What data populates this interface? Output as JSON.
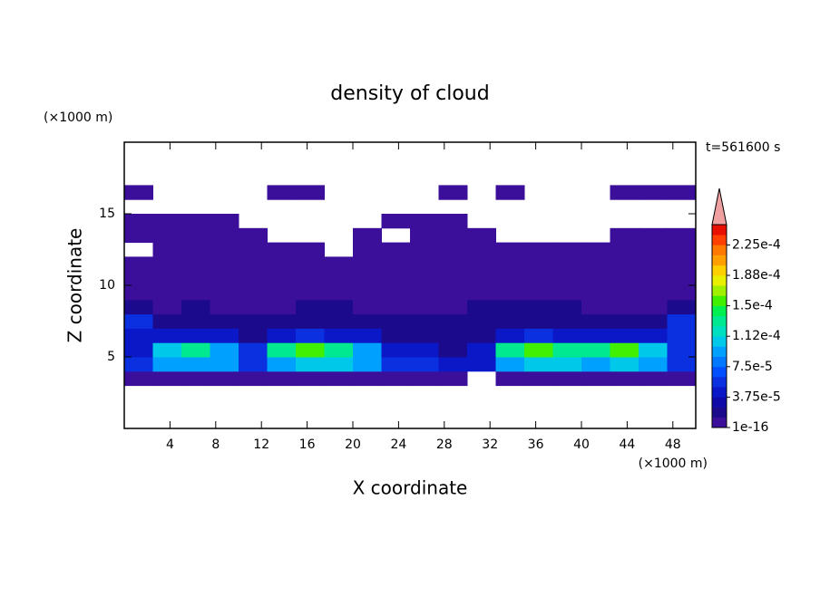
{
  "chart_data": {
    "type": "contour",
    "title": "density of cloud",
    "xlabel": "X coordinate",
    "ylabel": "Z coordinate",
    "x_unit": "(×1000 m)",
    "y_unit": "(×1000 m)",
    "annotation": "t=561600 s",
    "xlim": [
      0,
      50
    ],
    "ylim": [
      0,
      20
    ],
    "xticks": [
      4,
      8,
      12,
      16,
      20,
      24,
      28,
      32,
      36,
      40,
      44,
      48
    ],
    "yticks": [
      5,
      10,
      15
    ],
    "x_edges": [
      0,
      2.5,
      5,
      7.5,
      10,
      12.5,
      15,
      17.5,
      20,
      22.5,
      25,
      27.5,
      30,
      32.5,
      35,
      37.5,
      40,
      42.5,
      45,
      47.5,
      50
    ],
    "y_edges": [
      3,
      4,
      5,
      6,
      7,
      8,
      9,
      10,
      11,
      12,
      13,
      14,
      15,
      16,
      17
    ],
    "values": [
      [
        1e-06,
        1e-06,
        1e-06,
        1e-06,
        1e-06,
        1e-06,
        1e-06,
        1e-06,
        1e-06,
        1e-06,
        1e-06,
        1e-06,
        null,
        1e-06,
        1e-06,
        1e-06,
        1e-06,
        1e-06,
        1e-06,
        1e-06
      ],
      [
        6e-05,
        9e-05,
        9e-05,
        9e-05,
        6e-05,
        9e-05,
        0.00011,
        0.00011,
        9e-05,
        6e-05,
        6e-05,
        4e-05,
        4e-05,
        9e-05,
        0.00011,
        0.00011,
        9e-05,
        0.00011,
        9e-05,
        6e-05
      ],
      [
        4e-05,
        0.00011,
        0.00013,
        9e-05,
        6e-05,
        0.00013,
        0.00016,
        0.00013,
        9e-05,
        4e-05,
        4e-05,
        2e-05,
        4e-05,
        0.00013,
        0.00016,
        0.00013,
        0.00013,
        0.00016,
        0.00011,
        6e-05
      ],
      [
        4e-05,
        4e-05,
        4e-05,
        4e-05,
        2e-05,
        4e-05,
        6e-05,
        4e-05,
        4e-05,
        2e-05,
        2e-05,
        2e-05,
        2e-05,
        4e-05,
        6e-05,
        4e-05,
        4e-05,
        4e-05,
        4e-05,
        6e-05
      ],
      [
        6e-05,
        2e-05,
        2e-05,
        2e-05,
        2e-05,
        2e-05,
        2e-05,
        2e-05,
        2e-05,
        2e-05,
        2e-05,
        2e-05,
        2e-05,
        2e-05,
        2e-05,
        2e-05,
        2e-05,
        2e-05,
        2e-05,
        6e-05
      ],
      [
        2e-05,
        1e-06,
        2e-05,
        1e-06,
        1e-06,
        1e-06,
        2e-05,
        2e-05,
        1e-06,
        1e-06,
        1e-06,
        1e-06,
        2e-05,
        2e-05,
        2e-05,
        2e-05,
        1e-06,
        1e-06,
        1e-06,
        2e-05
      ],
      [
        1e-06,
        1e-06,
        1e-06,
        1e-06,
        1e-06,
        1e-06,
        1e-06,
        1e-06,
        1e-06,
        1e-06,
        1e-06,
        1e-06,
        1e-06,
        1e-06,
        1e-06,
        1e-06,
        1e-06,
        1e-06,
        1e-06,
        1e-06
      ],
      [
        1e-06,
        1e-06,
        1e-06,
        1e-06,
        1e-06,
        1e-06,
        1e-06,
        1e-06,
        1e-06,
        1e-06,
        1e-06,
        1e-06,
        1e-06,
        1e-06,
        1e-06,
        1e-06,
        1e-06,
        1e-06,
        1e-06,
        1e-06
      ],
      [
        1e-06,
        1e-06,
        1e-06,
        1e-06,
        1e-06,
        1e-06,
        1e-06,
        1e-06,
        1e-06,
        1e-06,
        1e-06,
        1e-06,
        1e-06,
        1e-06,
        1e-06,
        1e-06,
        1e-06,
        1e-06,
        1e-06,
        1e-06
      ],
      [
        null,
        1e-06,
        1e-06,
        1e-06,
        1e-06,
        1e-06,
        1e-06,
        null,
        1e-06,
        1e-06,
        1e-06,
        1e-06,
        1e-06,
        1e-06,
        1e-06,
        1e-06,
        1e-06,
        1e-06,
        1e-06,
        1e-06
      ],
      [
        1e-06,
        1e-06,
        1e-06,
        1e-06,
        1e-06,
        null,
        null,
        null,
        1e-06,
        null,
        1e-06,
        1e-06,
        1e-06,
        null,
        null,
        null,
        null,
        1e-06,
        1e-06,
        1e-06
      ],
      [
        1e-06,
        1e-06,
        1e-06,
        1e-06,
        null,
        null,
        null,
        null,
        null,
        1e-06,
        1e-06,
        1e-06,
        null,
        null,
        null,
        null,
        null,
        null,
        null,
        null
      ],
      [
        null,
        null,
        null,
        null,
        null,
        null,
        null,
        null,
        null,
        null,
        null,
        null,
        null,
        null,
        null,
        null,
        null,
        null,
        null,
        null
      ],
      [
        1e-06,
        null,
        null,
        null,
        null,
        1e-06,
        1e-06,
        null,
        null,
        null,
        null,
        1e-06,
        null,
        1e-06,
        null,
        null,
        null,
        1e-06,
        1e-06,
        1e-06
      ]
    ],
    "levels": [
      1e-16,
      1.25e-05,
      2.5e-05,
      3.75e-05,
      5e-05,
      6.25e-05,
      7.5e-05,
      8.75e-05,
      0.0001,
      0.0001125,
      0.000125,
      0.0001375,
      0.00015,
      0.0001625,
      0.000175,
      0.0001875,
      0.0002,
      0.0002125,
      0.000225,
      0.0002375,
      0.00025
    ],
    "colors": [
      "#3c0f9b",
      "#1c0a8c",
      "#100aa8",
      "#0a18c8",
      "#0a30e0",
      "#0050ff",
      "#0078ff",
      "#00a0ff",
      "#00c8e8",
      "#00e0c0",
      "#00e890",
      "#00f050",
      "#40f000",
      "#a0f000",
      "#e8f000",
      "#ffd000",
      "#ffa000",
      "#ff7800",
      "#ff4000",
      "#e81000"
    ],
    "extend_color": "#f0a0a0",
    "colorbar_ticks": [
      1e-16,
      {
        "value": 3.75e-05,
        "label": "3.75e-5"
      },
      {
        "value": 7.5e-05,
        "label": "7.5e-5"
      },
      {
        "value": 0.0001125,
        "label": "1.12e-4"
      },
      {
        "value": 0.00015,
        "label": "1.5e-4"
      },
      {
        "value": 0.0001875,
        "label": "1.88e-4"
      },
      {
        "value": 0.000225,
        "label": "2.25e-4"
      }
    ]
  }
}
